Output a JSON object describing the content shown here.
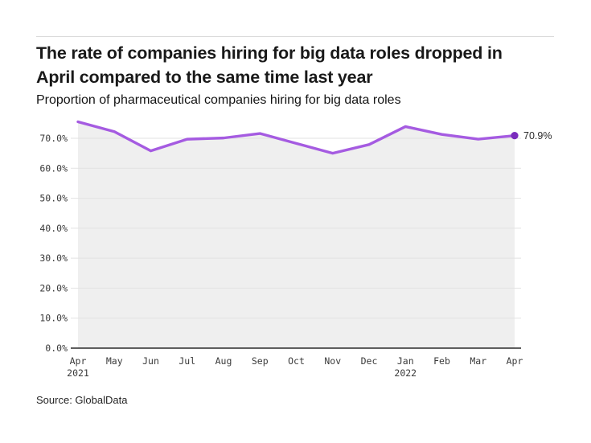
{
  "header": {
    "title_line1": "The rate of companies hiring for big data roles dropped in",
    "title_line2": "April compared to the same time last year",
    "subtitle": "Proportion of pharmaceutical companies hiring for big data roles"
  },
  "footer": {
    "source": "Source: GlobalData"
  },
  "chart_data": {
    "type": "area",
    "title": "Proportion of pharmaceutical companies hiring for big data roles",
    "categories": [
      "Apr",
      "May",
      "Jun",
      "Jul",
      "Aug",
      "Sep",
      "Oct",
      "Nov",
      "Dec",
      "Jan",
      "Feb",
      "Mar",
      "Apr"
    ],
    "year_labels": [
      {
        "index": 0,
        "label": "2021"
      },
      {
        "index": 9,
        "label": "2022"
      }
    ],
    "values": [
      75.5,
      72.2,
      65.8,
      69.7,
      70.1,
      71.6,
      68.3,
      65.0,
      67.9,
      73.9,
      71.3,
      69.7,
      70.9
    ],
    "unit": "%",
    "end_label": "70.9%",
    "y_ticks": [
      "0.0%",
      "10.0%",
      "20.0%",
      "30.0%",
      "40.0%",
      "50.0%",
      "60.0%",
      "70.0%"
    ],
    "y_tick_step": 10,
    "ylim": [
      0,
      76
    ],
    "grid": "horizontal",
    "legend": "none",
    "colors": {
      "line": "#a55be1",
      "marker": "#7a2cbd",
      "area": "#efefef",
      "grid": "#e2e2e2",
      "axis": "#2a2a2a",
      "tick_text": "#3a3a3a",
      "label_text": "#2b2b2b"
    }
  }
}
